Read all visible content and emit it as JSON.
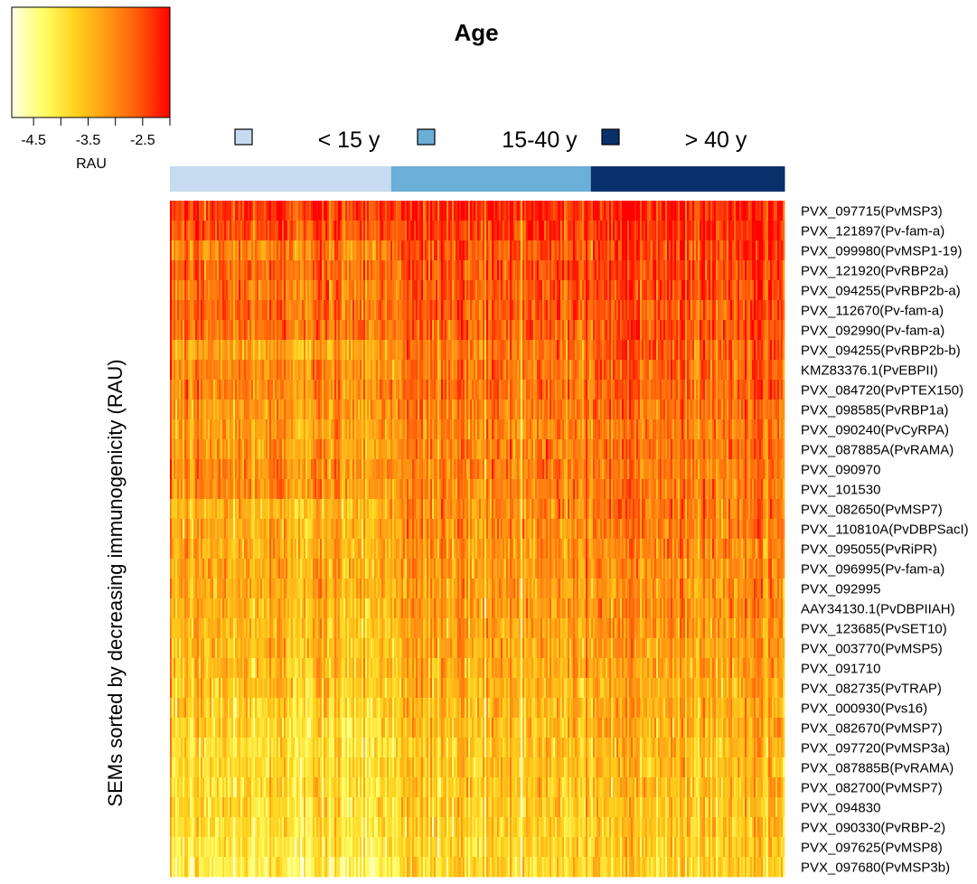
{
  "chart_data": {
    "type": "heatmap",
    "title": "Age",
    "ylabel": "SEMs sorted by decreasing immunogenicity (RAU)",
    "color_scale": {
      "label": "RAU",
      "ticks": [
        "-4.5",
        "-3.5",
        "-2.5"
      ],
      "range": [
        -4.9,
        -2.0
      ],
      "colors": [
        "#ffffe6",
        "#ffff66",
        "#ffd21e",
        "#ff9a14",
        "#ff5a0a",
        "#ff0000"
      ]
    },
    "groups": [
      {
        "label": "< 15 y",
        "color": "#c6dbef",
        "fraction": 0.36
      },
      {
        "label": "15-40 y",
        "color": "#6baed6",
        "fraction": 0.325
      },
      {
        "label": "> 40 y",
        "color": "#08306b",
        "fraction": 0.315
      }
    ],
    "rows": [
      {
        "label": "PVX_097715(PvMSP3)",
        "means": [
          -2.35,
          -2.25,
          -2.2
        ]
      },
      {
        "label": "PVX_121897(Pv-fam-a)",
        "means": [
          -2.55,
          -2.4,
          -2.3
        ]
      },
      {
        "label": "PVX_099980(PvMSP1-19)",
        "means": [
          -2.95,
          -2.55,
          -2.4
        ]
      },
      {
        "label": "PVX_121920(PvRBP2a)",
        "means": [
          -2.75,
          -2.55,
          -2.45
        ]
      },
      {
        "label": "PVX_094255(PvRBP2b-a)",
        "means": [
          -2.85,
          -2.6,
          -2.45
        ]
      },
      {
        "label": "PVX_112670(Pv-fam-a)",
        "means": [
          -2.75,
          -2.6,
          -2.55
        ]
      },
      {
        "label": "PVX_092990(Pv-fam-a)",
        "means": [
          -2.8,
          -2.65,
          -2.55
        ]
      },
      {
        "label": "PVX_094255(PvRBP2b-b)",
        "means": [
          -3.3,
          -2.85,
          -2.6
        ]
      },
      {
        "label": "KMZ83376.1(PvEBPII)",
        "means": [
          -3.05,
          -2.85,
          -2.7
        ]
      },
      {
        "label": "PVX_084720(PvPTEX150)",
        "means": [
          -3.0,
          -2.8,
          -2.7
        ]
      },
      {
        "label": "PVX_098585(PvRBP1a)",
        "means": [
          -3.15,
          -2.9,
          -2.75
        ]
      },
      {
        "label": "PVX_090240(PvCyRPA)",
        "means": [
          -3.25,
          -3.0,
          -2.85
        ]
      },
      {
        "label": "PVX_087885A(PvRAMA)",
        "means": [
          -3.2,
          -2.95,
          -2.85
        ]
      },
      {
        "label": "PVX_090970",
        "means": [
          -3.05,
          -2.95,
          -2.9
        ]
      },
      {
        "label": "PVX_101530",
        "means": [
          -3.1,
          -3.0,
          -2.9
        ]
      },
      {
        "label": "PVX_082650(PvMSP7)",
        "means": [
          -3.5,
          -3.05,
          -2.85
        ]
      },
      {
        "label": "PVX_110810A(PvDBPSacI)",
        "means": [
          -3.4,
          -3.1,
          -2.9
        ]
      },
      {
        "label": "PVX_095055(PvRiPR)",
        "means": [
          -3.35,
          -3.15,
          -3.0
        ]
      },
      {
        "label": "PVX_096995(Pv-fam-a)",
        "means": [
          -3.35,
          -3.15,
          -3.05
        ]
      },
      {
        "label": "PVX_092995",
        "means": [
          -3.35,
          -3.2,
          -3.1
        ]
      },
      {
        "label": "AAY34130.1(PvDBPIIAH)",
        "means": [
          -3.45,
          -3.2,
          -3.05
        ]
      },
      {
        "label": "PVX_123685(PvSET10)",
        "means": [
          -3.5,
          -3.3,
          -3.15
        ]
      },
      {
        "label": "PVX_003770(PvMSP5)",
        "means": [
          -3.55,
          -3.3,
          -3.2
        ]
      },
      {
        "label": "PVX_091710",
        "means": [
          -3.55,
          -3.35,
          -3.25
        ]
      },
      {
        "label": "PVX_082735(PvTRAP)",
        "means": [
          -3.6,
          -3.4,
          -3.3
        ]
      },
      {
        "label": "PVX_000930(Pvs16)",
        "means": [
          -3.75,
          -3.5,
          -3.35
        ]
      },
      {
        "label": "PVX_082670(PvMSP7)",
        "means": [
          -3.85,
          -3.55,
          -3.4
        ]
      },
      {
        "label": "PVX_097720(PvMSP3a)",
        "means": [
          -3.9,
          -3.6,
          -3.45
        ]
      },
      {
        "label": "PVX_087885B(PvRAMA)",
        "means": [
          -3.85,
          -3.6,
          -3.5
        ]
      },
      {
        "label": "PVX_082700(PvMSP7)",
        "means": [
          -3.9,
          -3.65,
          -3.5
        ]
      },
      {
        "label": "PVX_094830",
        "means": [
          -3.85,
          -3.7,
          -3.6
        ]
      },
      {
        "label": "PVX_090330(PvRBP-2)",
        "means": [
          -3.95,
          -3.75,
          -3.6
        ]
      },
      {
        "label": "PVX_097625(PvMSP8)",
        "means": [
          -4.05,
          -3.8,
          -3.65
        ]
      },
      {
        "label": "PVX_097680(PvMSP3b)",
        "means": [
          -4.2,
          -3.85,
          -3.7
        ]
      }
    ]
  }
}
